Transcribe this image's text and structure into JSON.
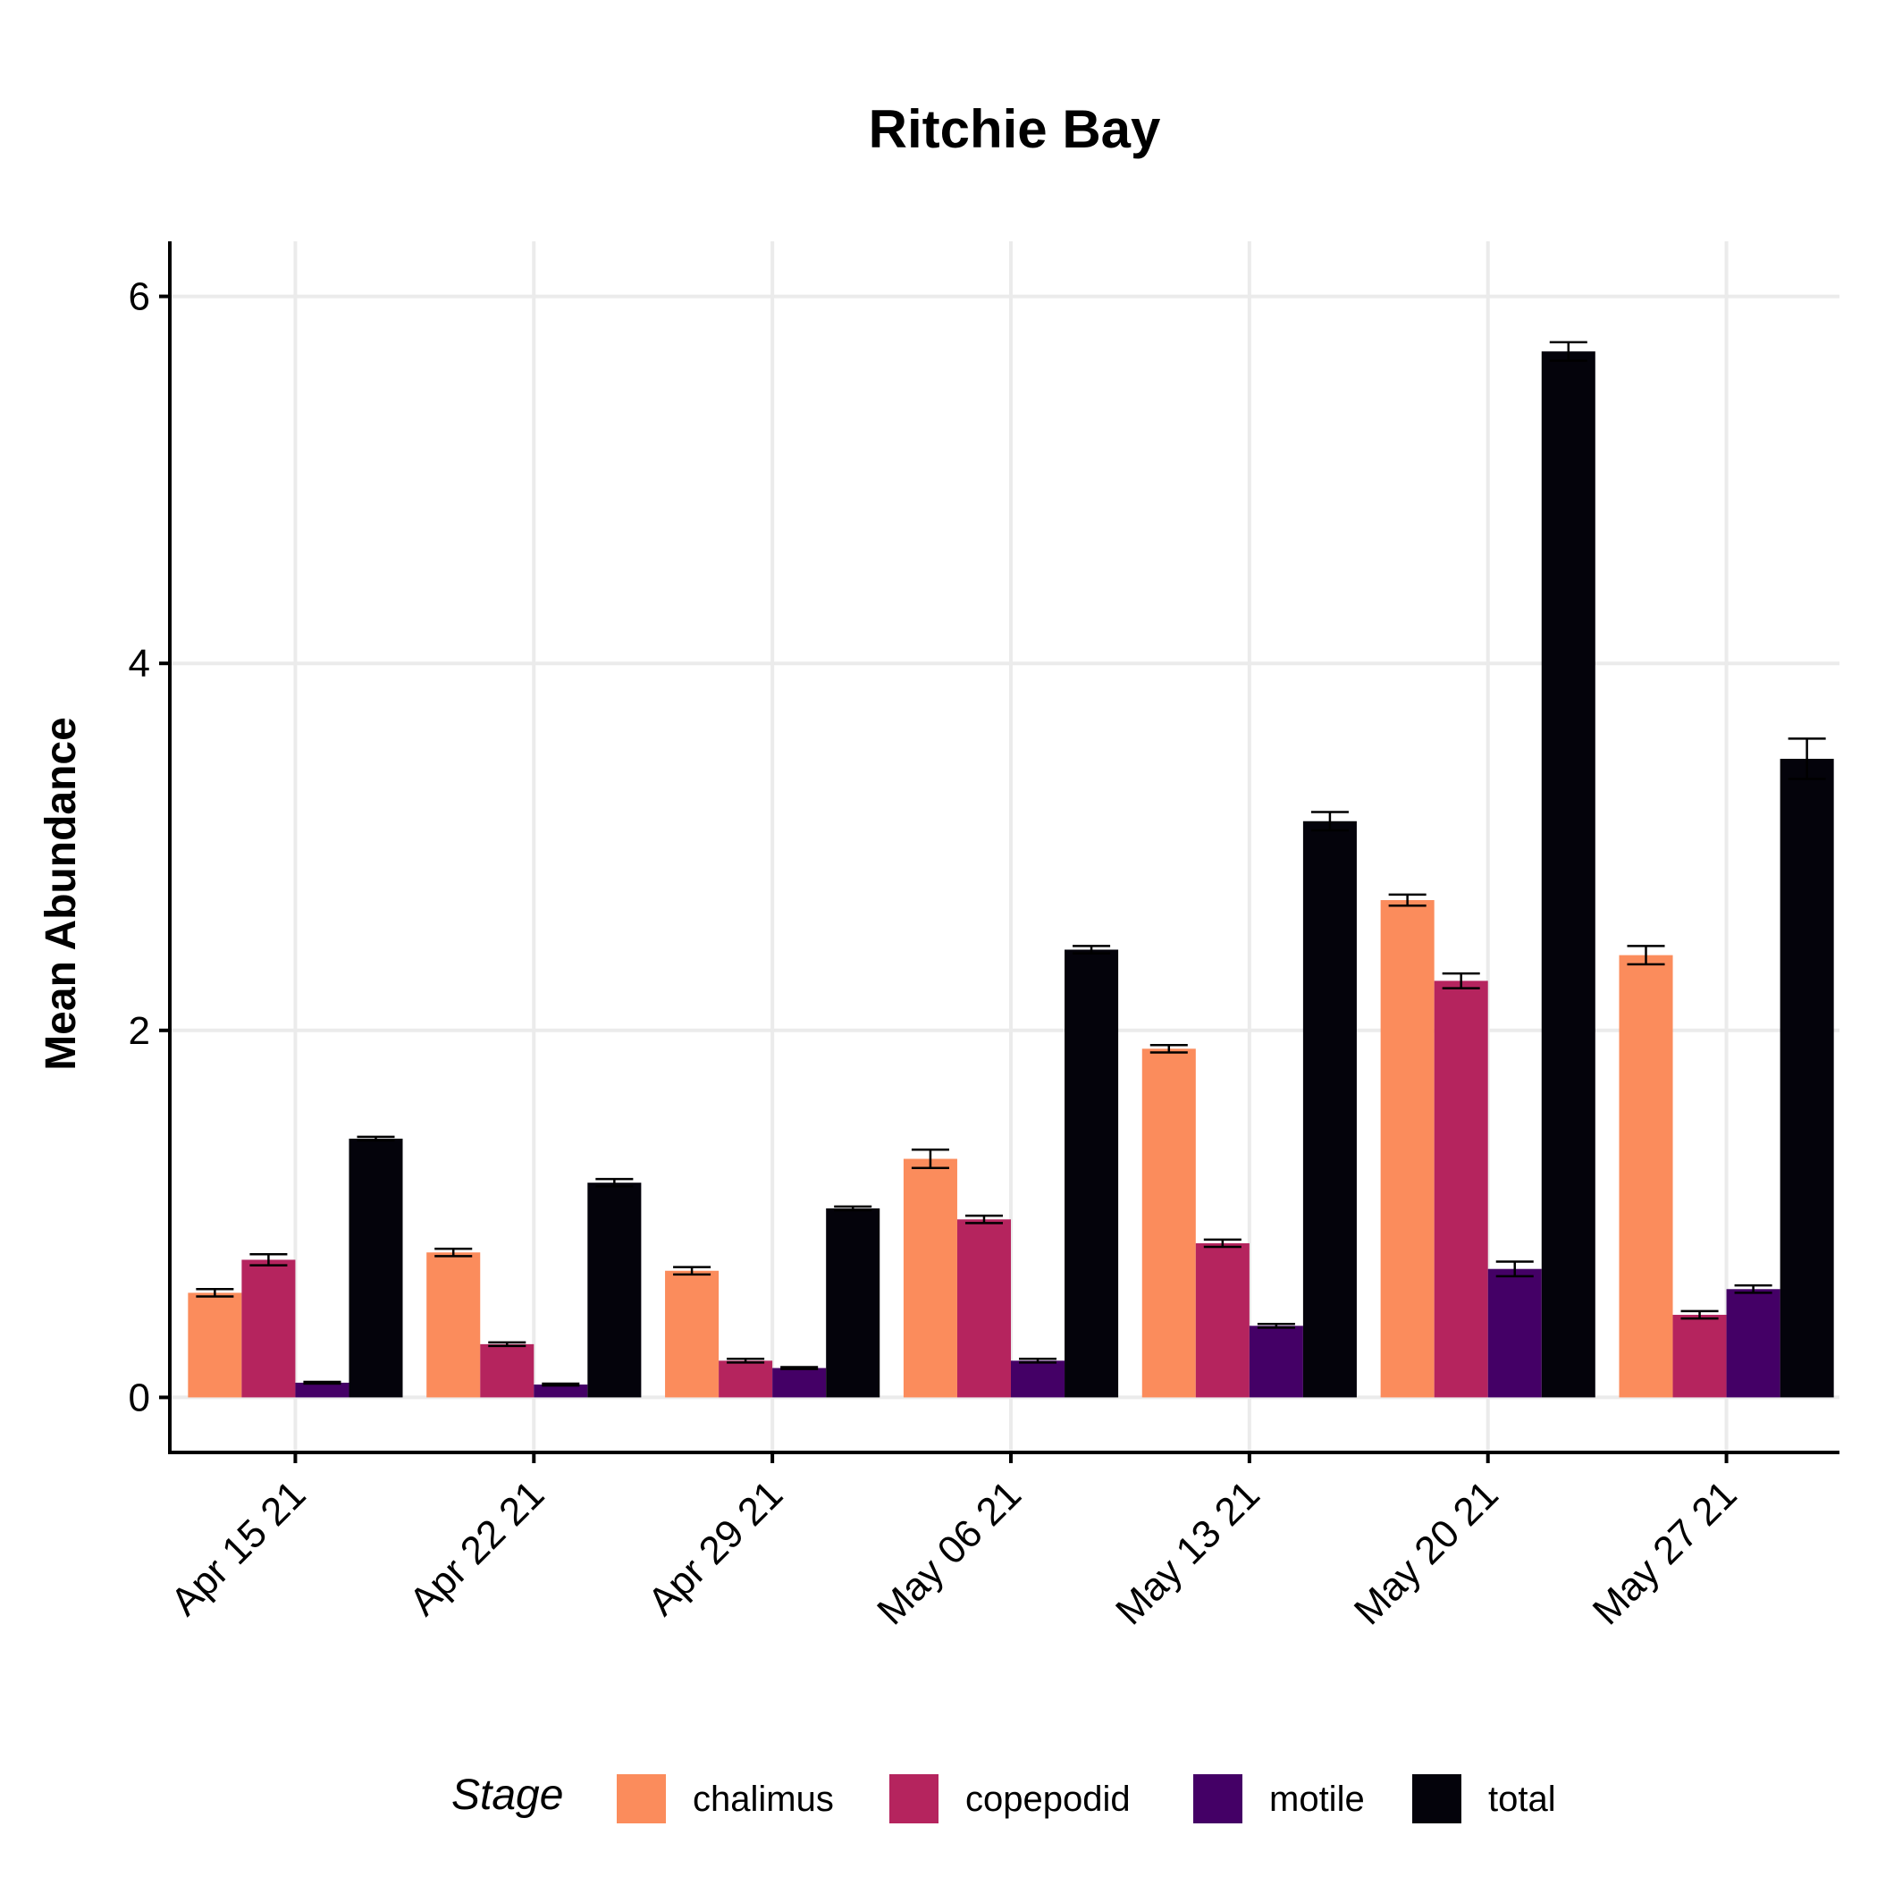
{
  "chart_data": {
    "type": "bar",
    "title": "Ritchie Bay",
    "xlabel": "",
    "ylabel": "Mean Abundance",
    "ylim": [
      -0.3,
      6.3
    ],
    "yticks": [
      0,
      2,
      4,
      6
    ],
    "grid": true,
    "legend_position": "bottom",
    "legend_title": "Stage",
    "categories": [
      "Apr 15 21",
      "Apr 22 21",
      "Apr 29 21",
      "May 06 21",
      "May 13 21",
      "May 20 21",
      "May 27 21"
    ],
    "series": [
      {
        "name": "chalimus",
        "color": "#FB8C5C",
        "values": [
          0.57,
          0.79,
          0.69,
          1.3,
          1.9,
          2.71,
          2.41
        ],
        "errors": [
          0.02,
          0.02,
          0.02,
          0.05,
          0.02,
          0.03,
          0.05
        ]
      },
      {
        "name": "copepodid",
        "color": "#B5245E",
        "values": [
          0.75,
          0.29,
          0.2,
          0.97,
          0.84,
          2.27,
          0.45
        ],
        "errors": [
          0.03,
          0.01,
          0.01,
          0.02,
          0.02,
          0.04,
          0.02
        ]
      },
      {
        "name": "motile",
        "color": "#440066",
        "values": [
          0.08,
          0.07,
          0.16,
          0.2,
          0.39,
          0.7,
          0.59
        ],
        "errors": [
          0.005,
          0.005,
          0.005,
          0.01,
          0.01,
          0.04,
          0.02
        ]
      },
      {
        "name": "total",
        "color": "#04030B",
        "values": [
          1.41,
          1.17,
          1.03,
          2.44,
          3.14,
          5.7,
          3.48
        ],
        "errors": [
          0.01,
          0.02,
          0.01,
          0.02,
          0.05,
          0.05,
          0.11
        ]
      }
    ]
  }
}
